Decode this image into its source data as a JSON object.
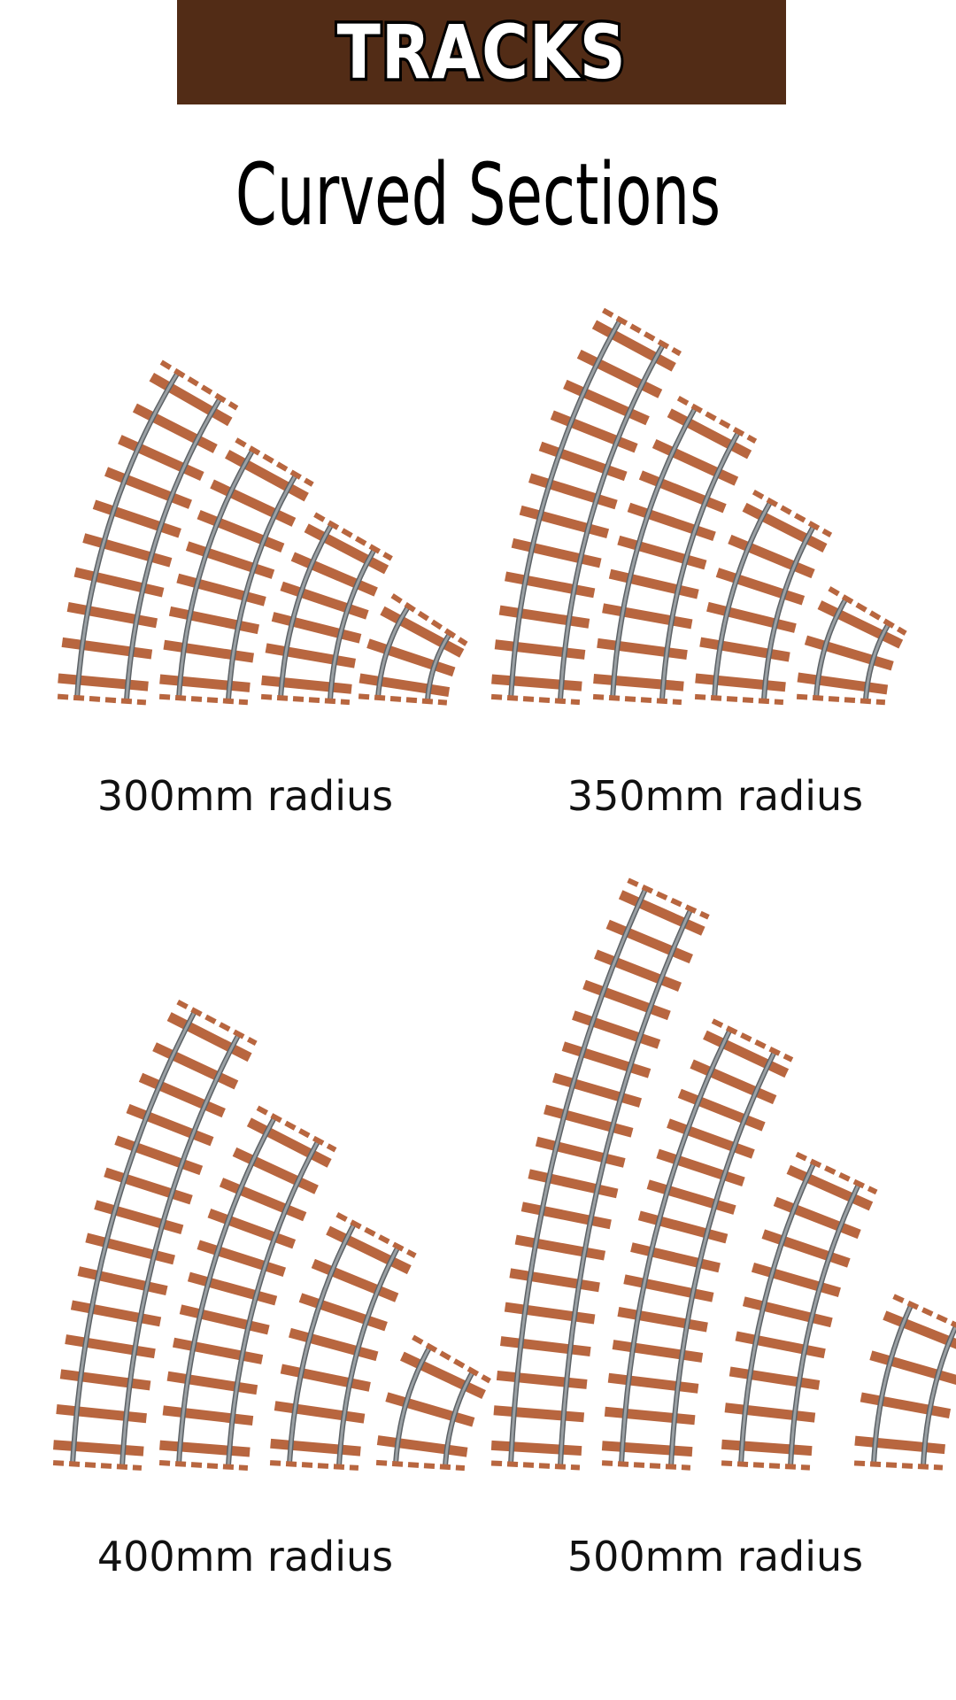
{
  "header": {
    "title": "TRACKS",
    "subtitle": "Curved Sections"
  },
  "colors": {
    "banner": "#522c16",
    "sleeper": "#b8663f",
    "rail": "#9aa0a4"
  },
  "groups": [
    {
      "label": "300mm radius"
    },
    {
      "label": "350mm radius"
    },
    {
      "label": "400mm radius"
    },
    {
      "label": "500mm radius"
    }
  ]
}
